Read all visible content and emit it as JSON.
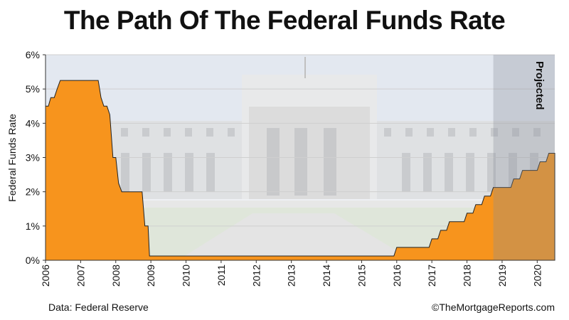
{
  "chart_data": {
    "type": "area",
    "title": "The Path Of The Federal Funds Rate",
    "ylabel": "Federal Funds Rate",
    "xlabel": "",
    "x_ticks": [
      "2006",
      "2007",
      "2008",
      "2009",
      "2010",
      "2011",
      "2012",
      "2013",
      "2014",
      "2015",
      "2016",
      "2017",
      "2018",
      "2019",
      "2020"
    ],
    "y_ticks": [
      "0%",
      "1%",
      "2%",
      "3%",
      "4%",
      "5%",
      "6%"
    ],
    "xlim": [
      2006.0,
      2020.5
    ],
    "ylim": [
      0,
      6
    ],
    "grid": true,
    "projected_label": "Projected",
    "projected_from": 2018.75,
    "fill_color": "#f7941d",
    "projected_fill_color": "#e08a19",
    "series": [
      {
        "x": [
          2006.0,
          2006.08,
          2006.15,
          2006.25,
          2006.33,
          2006.42,
          2006.5,
          2007.5,
          2007.58,
          2007.66,
          2007.75,
          2007.83,
          2007.92,
          2008.0,
          2008.08,
          2008.17,
          2008.25,
          2008.33,
          2008.75,
          2008.83,
          2008.92,
          2008.96,
          2015.92,
          2016.0,
          2016.92,
          2017.0,
          2017.17,
          2017.25,
          2017.42,
          2017.5,
          2017.92,
          2018.0,
          2018.17,
          2018.25,
          2018.42,
          2018.5,
          2018.67,
          2018.75,
          2019.25,
          2019.33,
          2019.5,
          2019.58,
          2020.0,
          2020.08,
          2020.25,
          2020.33,
          2020.5
        ],
        "y": [
          4.5,
          4.5,
          4.75,
          4.75,
          5.0,
          5.25,
          5.25,
          5.25,
          4.75,
          4.5,
          4.5,
          4.25,
          3.0,
          3.0,
          2.25,
          2.0,
          2.0,
          2.0,
          2.0,
          1.0,
          1.0,
          0.125,
          0.125,
          0.375,
          0.375,
          0.625,
          0.625,
          0.875,
          0.875,
          1.125,
          1.125,
          1.375,
          1.375,
          1.625,
          1.625,
          1.875,
          1.875,
          2.125,
          2.125,
          2.375,
          2.375,
          2.625,
          2.625,
          2.875,
          2.875,
          3.125,
          3.125
        ]
      }
    ]
  },
  "footer": {
    "source": "Data: Federal Reserve",
    "copyright": "©TheMortgageReports.com"
  },
  "colors": {
    "axis": "#333333",
    "gridline": "#cfcfcf",
    "projected_shade": "#8a8f99"
  }
}
